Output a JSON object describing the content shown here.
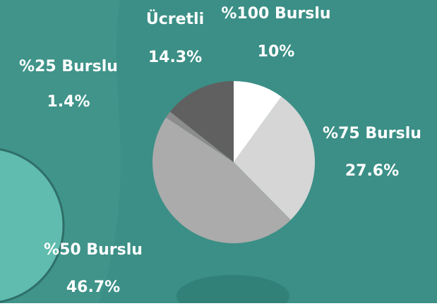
{
  "chart_data": {
    "type": "pie",
    "categories": [
      "%100 Burslu",
      "%75 Burslu",
      "%50 Burslu",
      "%25 Burslu",
      "Ücretli"
    ],
    "values": [
      10,
      27.6,
      46.7,
      1.4,
      14.3
    ],
    "value_labels": [
      "10%",
      "27.6%",
      "46.7%",
      "1.4%",
      "14.3%"
    ],
    "colors": [
      "#ffffff",
      "#d6d6d6",
      "#ababab",
      "#8c8c8c",
      "#606060"
    ]
  }
}
